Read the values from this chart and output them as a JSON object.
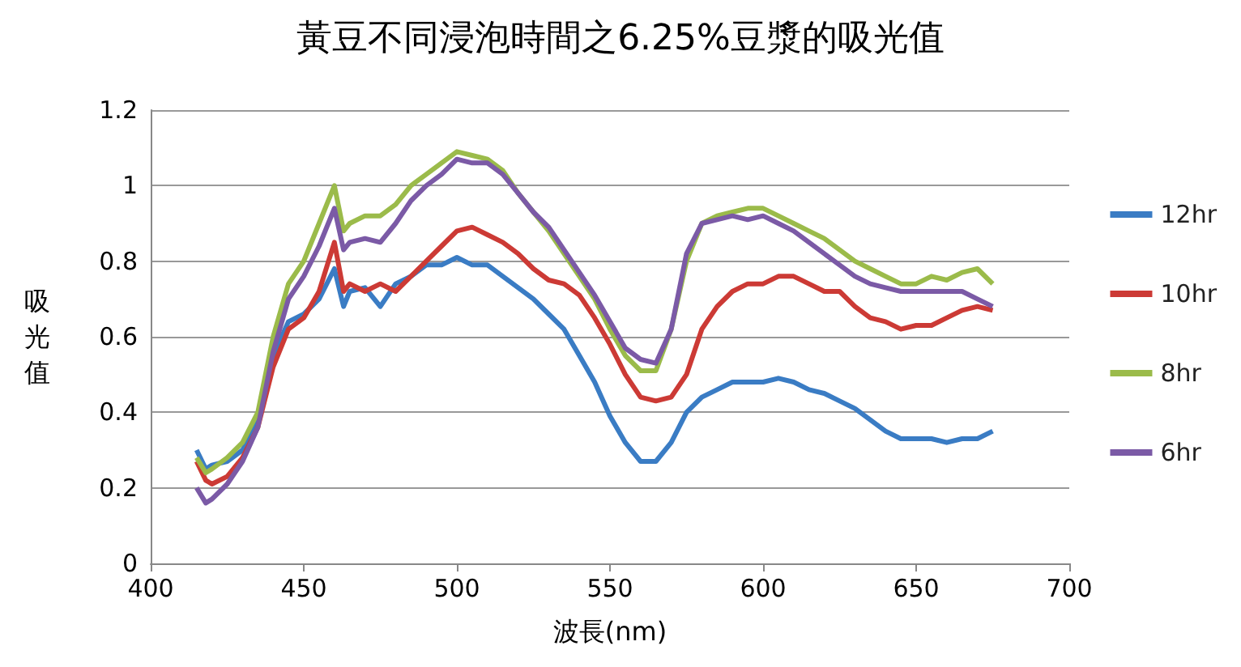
{
  "chart_data": {
    "type": "line",
    "title": "黃豆不同浸泡時間之6.25%豆漿的吸光值",
    "xlabel": "波長(nm)",
    "ylabel": "吸光值",
    "x": [
      415,
      418,
      420,
      425,
      430,
      435,
      440,
      445,
      450,
      455,
      460,
      463,
      465,
      470,
      475,
      480,
      485,
      490,
      495,
      500,
      505,
      510,
      515,
      520,
      525,
      530,
      535,
      540,
      545,
      550,
      555,
      560,
      565,
      570,
      575,
      580,
      585,
      590,
      595,
      600,
      605,
      610,
      615,
      620,
      625,
      630,
      635,
      640,
      645,
      650,
      655,
      660,
      665,
      670,
      675
    ],
    "series": [
      {
        "name": "12hr",
        "color": "#3a7cc4",
        "values": [
          0.3,
          0.25,
          0.26,
          0.27,
          0.3,
          0.38,
          0.55,
          0.64,
          0.66,
          0.7,
          0.78,
          0.68,
          0.72,
          0.73,
          0.68,
          0.74,
          0.76,
          0.79,
          0.79,
          0.81,
          0.79,
          0.79,
          0.76,
          0.73,
          0.7,
          0.66,
          0.62,
          0.55,
          0.48,
          0.39,
          0.32,
          0.27,
          0.27,
          0.32,
          0.4,
          0.44,
          0.46,
          0.48,
          0.48,
          0.48,
          0.49,
          0.48,
          0.46,
          0.45,
          0.43,
          0.41,
          0.38,
          0.35,
          0.33,
          0.33,
          0.33,
          0.32,
          0.33,
          0.33,
          0.35
        ]
      },
      {
        "name": "10hr",
        "color": "#cc3a35",
        "values": [
          0.27,
          0.22,
          0.21,
          0.23,
          0.28,
          0.36,
          0.52,
          0.62,
          0.65,
          0.72,
          0.85,
          0.72,
          0.74,
          0.72,
          0.74,
          0.72,
          0.76,
          0.8,
          0.84,
          0.88,
          0.89,
          0.87,
          0.85,
          0.82,
          0.78,
          0.75,
          0.74,
          0.71,
          0.65,
          0.58,
          0.5,
          0.44,
          0.43,
          0.44,
          0.5,
          0.62,
          0.68,
          0.72,
          0.74,
          0.74,
          0.76,
          0.76,
          0.74,
          0.72,
          0.72,
          0.68,
          0.65,
          0.64,
          0.62,
          0.63,
          0.63,
          0.65,
          0.67,
          0.68,
          0.67
        ]
      },
      {
        "name": "8hr",
        "color": "#9bbb4a",
        "values": [
          0.28,
          0.24,
          0.25,
          0.28,
          0.32,
          0.4,
          0.6,
          0.74,
          0.8,
          0.9,
          1.0,
          0.88,
          0.9,
          0.92,
          0.92,
          0.95,
          1.0,
          1.03,
          1.06,
          1.09,
          1.08,
          1.07,
          1.04,
          0.98,
          0.93,
          0.88,
          0.82,
          0.76,
          0.7,
          0.62,
          0.55,
          0.51,
          0.51,
          0.62,
          0.8,
          0.9,
          0.92,
          0.93,
          0.94,
          0.94,
          0.92,
          0.9,
          0.88,
          0.86,
          0.83,
          0.8,
          0.78,
          0.76,
          0.74,
          0.74,
          0.76,
          0.75,
          0.77,
          0.78,
          0.74
        ]
      },
      {
        "name": "6hr",
        "color": "#7b5aa6",
        "values": [
          0.2,
          0.16,
          0.17,
          0.21,
          0.27,
          0.36,
          0.56,
          0.7,
          0.76,
          0.84,
          0.94,
          0.83,
          0.85,
          0.86,
          0.85,
          0.9,
          0.96,
          1.0,
          1.03,
          1.07,
          1.06,
          1.06,
          1.03,
          0.98,
          0.93,
          0.89,
          0.83,
          0.77,
          0.71,
          0.64,
          0.57,
          0.54,
          0.53,
          0.62,
          0.82,
          0.9,
          0.91,
          0.92,
          0.91,
          0.92,
          0.9,
          0.88,
          0.85,
          0.82,
          0.79,
          0.76,
          0.74,
          0.73,
          0.72,
          0.72,
          0.72,
          0.72,
          0.72,
          0.7,
          0.68
        ]
      }
    ],
    "xlim": [
      400,
      700
    ],
    "xticks": [
      400,
      450,
      500,
      550,
      600,
      650,
      700
    ],
    "ylim": [
      0,
      1.2
    ],
    "yticks": [
      0,
      0.2,
      0.4,
      0.6,
      0.8,
      1,
      1.2
    ],
    "grid": "y",
    "legend": "right",
    "marker": "none",
    "line_style": "solid"
  }
}
